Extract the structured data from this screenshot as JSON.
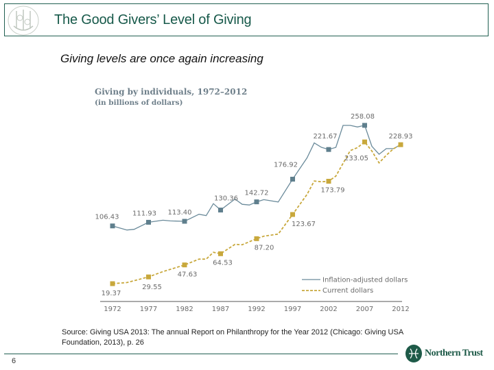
{
  "header": {
    "title": "The Good Givers’ Level of Giving"
  },
  "subtitle": "Giving levels are once again increasing",
  "source": "Source: Giving USA 2013: The annual Report on Philanthropy for the Year 2012 (Chicago: Giving USA Foundation, 2013), p. 26",
  "page_number": "6",
  "logo": {
    "text": "Northern Trust",
    "color": "#1e5a48"
  },
  "chart_data": {
    "type": "line",
    "title": "Giving by individuals, 1972–2012",
    "subtitle": "(in billions of dollars)",
    "xlabel": "",
    "ylabel": "",
    "xlim": [
      1972,
      2012
    ],
    "x_ticks": [
      "1972",
      "1977",
      "1982",
      "1987",
      "1992",
      "1997",
      "2002",
      "2007",
      "2012"
    ],
    "grid": false,
    "legend_position": "bottom-right",
    "series": [
      {
        "name": "Inflation-adjusted dollars",
        "color": "#6a8a9a",
        "style": "solid",
        "points": [
          [
            1972,
            106.4
          ],
          [
            1974,
            100.3
          ],
          [
            1975,
            101.3
          ],
          [
            1977,
            111.9
          ],
          [
            1979,
            115
          ],
          [
            1980,
            114
          ],
          [
            1982,
            113.4
          ],
          [
            1984,
            124
          ],
          [
            1985,
            122
          ],
          [
            1986,
            140
          ],
          [
            1987,
            130.4
          ],
          [
            1989,
            147
          ],
          [
            1990,
            139
          ],
          [
            1991,
            138
          ],
          [
            1992,
            142.7
          ],
          [
            1993,
            146
          ],
          [
            1995,
            142.5
          ],
          [
            1997,
            176.9
          ],
          [
            1999,
            209
          ],
          [
            2000,
            231.6
          ],
          [
            2001,
            225
          ],
          [
            2002,
            221.7
          ],
          [
            2003,
            224.8
          ],
          [
            2004,
            258
          ],
          [
            2005,
            258
          ],
          [
            2006,
            255.6
          ],
          [
            2007,
            258.1
          ],
          [
            2008,
            226.5
          ],
          [
            2009,
            214.5
          ],
          [
            2010,
            223
          ],
          [
            2011,
            223
          ],
          [
            2012,
            228.9
          ]
        ],
        "labeled_points": [
          [
            1972,
            106.43
          ],
          [
            1977,
            111.93
          ],
          [
            1982,
            113.4
          ],
          [
            1987,
            130.36
          ],
          [
            1992,
            142.72
          ],
          [
            1997,
            176.92
          ],
          [
            2002,
            221.67
          ],
          [
            2007,
            258.08
          ]
        ],
        "labels": [
          "106.43",
          "111.93",
          "113.40",
          "130.36",
          "142.72",
          "176.92",
          "221.67",
          "258.08"
        ]
      },
      {
        "name": "Current dollars",
        "color": "#c8a83c",
        "style": "dashed",
        "points": [
          [
            1972,
            19.4
          ],
          [
            1974,
            21
          ],
          [
            1977,
            29.6
          ],
          [
            1979,
            37.6
          ],
          [
            1982,
            47.6
          ],
          [
            1984,
            56.4
          ],
          [
            1985,
            56.4
          ],
          [
            1986,
            66.7
          ],
          [
            1987,
            64.5
          ],
          [
            1989,
            78.7
          ],
          [
            1990,
            78
          ],
          [
            1992,
            87.2
          ],
          [
            1993,
            91
          ],
          [
            1995,
            94.2
          ],
          [
            1997,
            123.7
          ],
          [
            1999,
            154
          ],
          [
            2000,
            174.1
          ],
          [
            2001,
            173
          ],
          [
            2002,
            173.8
          ],
          [
            2003,
            181.6
          ],
          [
            2005,
            220
          ],
          [
            2006,
            224.5
          ],
          [
            2007,
            233.05
          ],
          [
            2008,
            219.4
          ],
          [
            2009,
            201.5
          ],
          [
            2010,
            213
          ],
          [
            2011,
            222.8
          ],
          [
            2012,
            228.9
          ]
        ],
        "labeled_points": [
          [
            1972,
            19.37
          ],
          [
            1977,
            29.55
          ],
          [
            1982,
            47.63
          ],
          [
            1987,
            64.53
          ],
          [
            1992,
            87.2
          ],
          [
            1997,
            123.67
          ],
          [
            2002,
            173.79
          ],
          [
            2007,
            233.05
          ],
          [
            2012,
            228.93
          ]
        ],
        "labels": [
          "19.37",
          "29.55",
          "47.63",
          "64.53",
          "87.20",
          "123.67",
          "173.79",
          "233.05",
          "228.93"
        ]
      }
    ]
  }
}
